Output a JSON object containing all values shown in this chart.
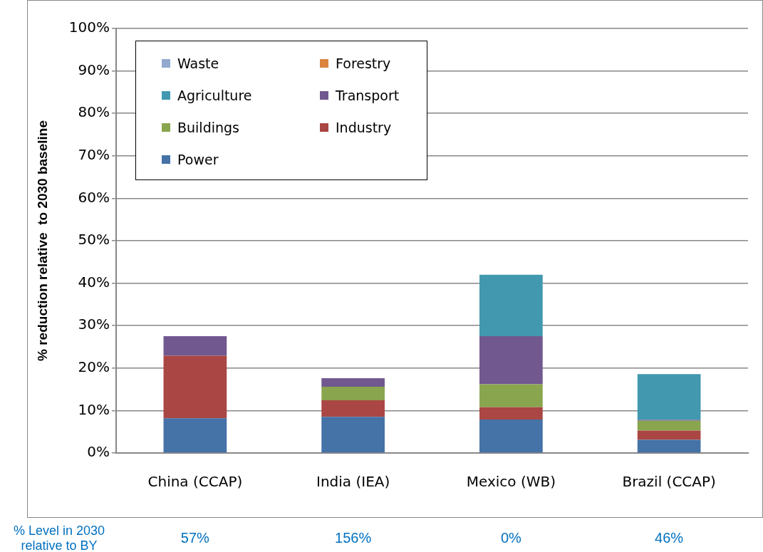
{
  "chart_data": {
    "type": "bar",
    "stacked": true,
    "ylabel": "% reduction relative  to 2030 baseline",
    "categories": [
      "China (CCAP)",
      "India (IEA)",
      "Mexico (WB)",
      "Brazil (CCAP)"
    ],
    "series": [
      {
        "name": "Power",
        "color": "#4572a7",
        "values": [
          8.2,
          8.5,
          7.9,
          3.1
        ]
      },
      {
        "name": "Industry",
        "color": "#aa4643",
        "values": [
          14.7,
          3.9,
          2.9,
          2.2
        ]
      },
      {
        "name": "Buildings",
        "color": "#89a54e",
        "values": [
          0,
          3.2,
          5.4,
          2.3
        ]
      },
      {
        "name": "Transport",
        "color": "#71588f",
        "values": [
          4.6,
          2.0,
          11.3,
          0.2
        ]
      },
      {
        "name": "Agriculture",
        "color": "#4198af",
        "values": [
          0,
          0,
          14.5,
          10.8
        ]
      },
      {
        "name": "Forestry",
        "color": "#db843d",
        "values": [
          0,
          0,
          0,
          0
        ]
      },
      {
        "name": "Waste",
        "color": "#93a9cf",
        "values": [
          0,
          0,
          0,
          0
        ]
      }
    ],
    "ylim": [
      0,
      100
    ],
    "yticks": [
      {
        "value": 0,
        "label": "0%"
      },
      {
        "value": 10,
        "label": "10%"
      },
      {
        "value": 20,
        "label": "20%"
      },
      {
        "value": 30,
        "label": "30%"
      },
      {
        "value": 40,
        "label": "40%"
      },
      {
        "value": 50,
        "label": "50%"
      },
      {
        "value": 60,
        "label": "60%"
      },
      {
        "value": 70,
        "label": "70%"
      },
      {
        "value": 80,
        "label": "80%"
      },
      {
        "value": 90,
        "label": "90%"
      },
      {
        "value": 100,
        "label": "100%"
      }
    ],
    "grid": "y",
    "legend": "top left",
    "annotations": [
      "% Level in 2030 relative to BY",
      "57%",
      "156%",
      "0%",
      "46%"
    ]
  }
}
